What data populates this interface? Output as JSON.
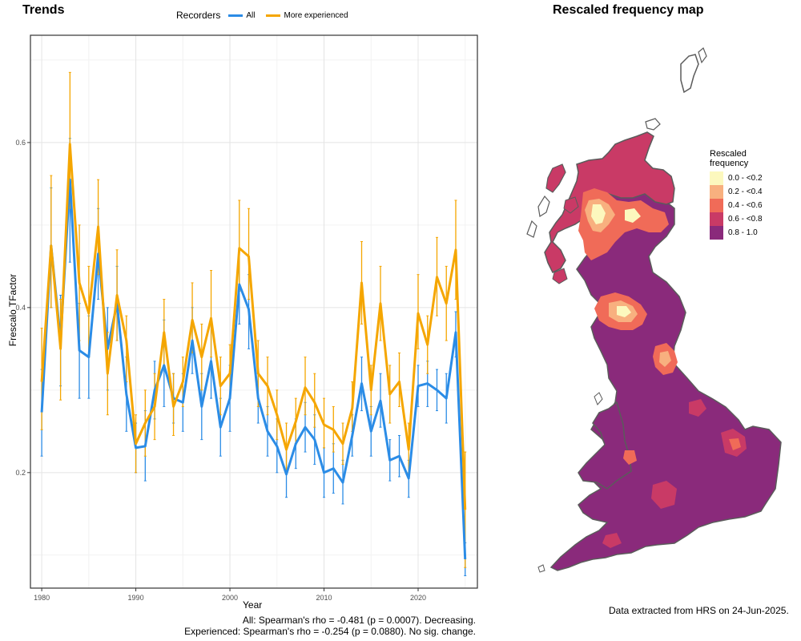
{
  "left_panel": {
    "title": "Trends",
    "legend_title": "Recorders",
    "stat_line_all": "All: Spearman's rho = -0.481 (p = 0.0007). Decreasing.",
    "stat_line_exp": "Experienced: Spearman's rho = -0.254 (p = 0.0880). No sig. change."
  },
  "right_panel": {
    "title": "Rescaled frequency map",
    "legend_title_1": "Rescaled",
    "legend_title_2": "frequency",
    "legend": [
      {
        "label": "0.0 - <0.2",
        "color": "#fcf8be"
      },
      {
        "label": "0.2 - <0.4",
        "color": "#f8b07f"
      },
      {
        "label": "0.4 - <0.6",
        "color": "#f06b58"
      },
      {
        "label": "0.6 - <0.8",
        "color": "#c93a66"
      },
      {
        "label": "0.8 - 1.0",
        "color": "#8a2a7b"
      }
    ],
    "footnote": "Data extracted from HRS on 24-Jun-2025."
  },
  "chart_data": {
    "type": "line",
    "title": "Trends",
    "xlabel": "Year",
    "ylabel": "Frescalo TFactor",
    "xlim": [
      1978.8,
      2026.3
    ],
    "ylim": [
      0.06,
      0.73
    ],
    "x_ticks": [
      1980,
      1990,
      2000,
      2010,
      2020
    ],
    "y_ticks": [
      0.2,
      0.4,
      0.6
    ],
    "grid": true,
    "legend_position": "top",
    "x": [
      1980,
      1981,
      1982,
      1983,
      1984,
      1985,
      1986,
      1987,
      1988,
      1989,
      1990,
      1991,
      1992,
      1993,
      1994,
      1995,
      1996,
      1997,
      1998,
      1999,
      2000,
      2001,
      2002,
      2003,
      2004,
      2005,
      2006,
      2007,
      2008,
      2009,
      2010,
      2011,
      2012,
      2013,
      2014,
      2015,
      2016,
      2017,
      2018,
      2019,
      2020,
      2021,
      2022,
      2023,
      2024,
      2025
    ],
    "series": [
      {
        "name": "All",
        "color": "#2b8ce6",
        "values": [
          0.273,
          0.475,
          0.36,
          0.555,
          0.348,
          0.34,
          0.465,
          0.35,
          0.405,
          0.295,
          0.23,
          0.232,
          0.3,
          0.33,
          0.29,
          0.285,
          0.36,
          0.28,
          0.335,
          0.255,
          0.29,
          0.428,
          0.398,
          0.29,
          0.25,
          0.232,
          0.198,
          0.235,
          0.255,
          0.24,
          0.2,
          0.205,
          0.188,
          0.245,
          0.308,
          0.25,
          0.287,
          0.215,
          0.22,
          0.193,
          0.305,
          0.308,
          0.3,
          0.29,
          0.37,
          0.095
        ],
        "lower": [
          0.22,
          0.4,
          0.305,
          0.455,
          0.29,
          0.29,
          0.41,
          0.3,
          0.36,
          0.25,
          0.2,
          0.19,
          0.265,
          0.28,
          0.26,
          0.25,
          0.32,
          0.24,
          0.29,
          0.22,
          0.25,
          0.38,
          0.35,
          0.26,
          0.22,
          0.2,
          0.17,
          0.205,
          0.225,
          0.21,
          0.17,
          0.175,
          0.162,
          0.22,
          0.275,
          0.22,
          0.255,
          0.19,
          0.195,
          0.17,
          0.28,
          0.28,
          0.275,
          0.26,
          0.34,
          0.075
        ],
        "upper": [
          0.325,
          0.545,
          0.415,
          0.605,
          0.405,
          0.39,
          0.52,
          0.4,
          0.45,
          0.34,
          0.26,
          0.275,
          0.335,
          0.385,
          0.32,
          0.32,
          0.4,
          0.32,
          0.38,
          0.29,
          0.33,
          0.47,
          0.44,
          0.32,
          0.28,
          0.265,
          0.228,
          0.265,
          0.285,
          0.27,
          0.23,
          0.235,
          0.215,
          0.27,
          0.34,
          0.28,
          0.32,
          0.24,
          0.245,
          0.215,
          0.33,
          0.335,
          0.325,
          0.32,
          0.395,
          0.115
        ]
      },
      {
        "name": "More experienced",
        "color": "#f5a600",
        "values": [
          0.31,
          0.475,
          0.35,
          0.598,
          0.43,
          0.393,
          0.498,
          0.32,
          0.415,
          0.36,
          0.235,
          0.26,
          0.28,
          0.37,
          0.28,
          0.31,
          0.385,
          0.34,
          0.387,
          0.305,
          0.32,
          0.472,
          0.462,
          0.32,
          0.305,
          0.27,
          0.228,
          0.262,
          0.303,
          0.285,
          0.258,
          0.252,
          0.235,
          0.278,
          0.43,
          0.3,
          0.405,
          0.295,
          0.31,
          0.228,
          0.393,
          0.355,
          0.437,
          0.405,
          0.47,
          0.155
        ],
        "lower": [
          0.252,
          0.4,
          0.288,
          0.52,
          0.36,
          0.34,
          0.44,
          0.27,
          0.36,
          0.31,
          0.2,
          0.22,
          0.24,
          0.33,
          0.245,
          0.28,
          0.345,
          0.3,
          0.34,
          0.27,
          0.29,
          0.42,
          0.41,
          0.28,
          0.27,
          0.24,
          0.2,
          0.235,
          0.27,
          0.255,
          0.23,
          0.225,
          0.21,
          0.25,
          0.38,
          0.27,
          0.36,
          0.26,
          0.28,
          0.2,
          0.35,
          0.32,
          0.39,
          0.36,
          0.41,
          0.085
        ],
        "upper": [
          0.375,
          0.56,
          0.41,
          0.685,
          0.5,
          0.45,
          0.555,
          0.37,
          0.47,
          0.39,
          0.27,
          0.3,
          0.32,
          0.41,
          0.32,
          0.34,
          0.43,
          0.38,
          0.445,
          0.34,
          0.355,
          0.53,
          0.52,
          0.36,
          0.34,
          0.3,
          0.26,
          0.29,
          0.34,
          0.32,
          0.29,
          0.28,
          0.26,
          0.31,
          0.48,
          0.33,
          0.45,
          0.33,
          0.345,
          0.26,
          0.44,
          0.39,
          0.485,
          0.45,
          0.53,
          0.225
        ]
      }
    ]
  }
}
